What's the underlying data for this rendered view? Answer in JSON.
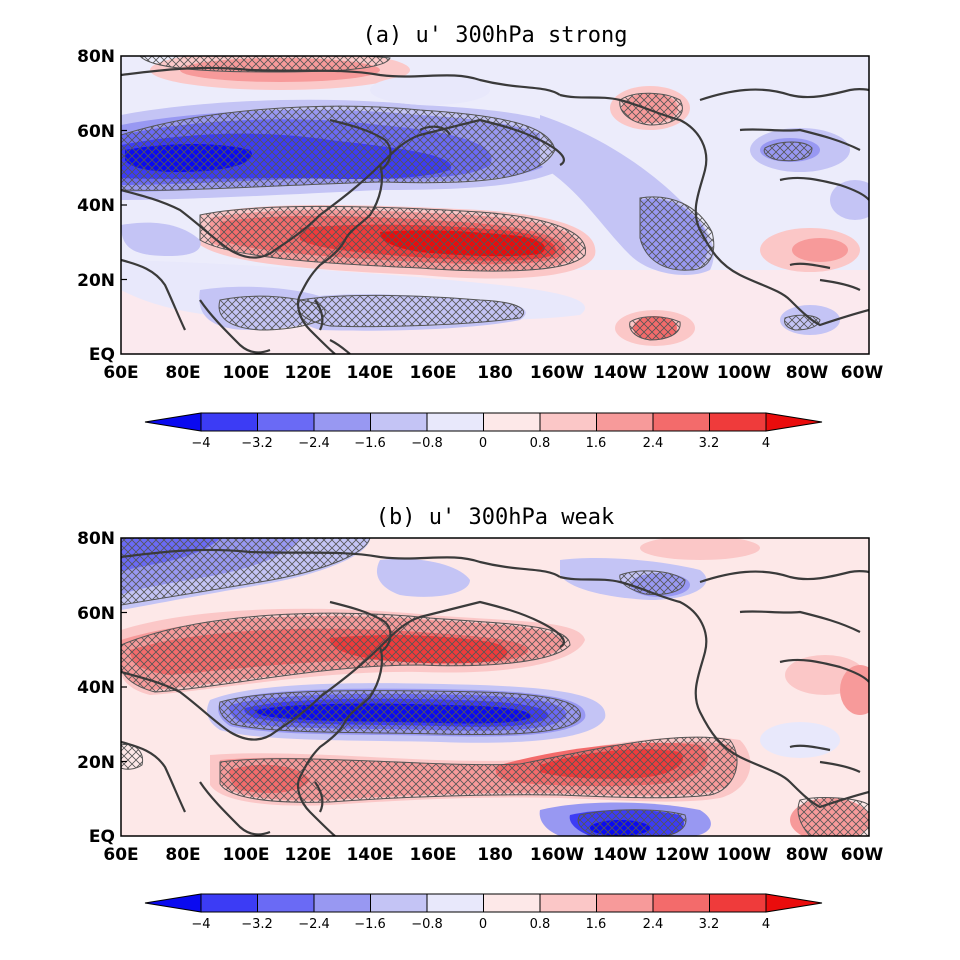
{
  "panels": [
    {
      "title": "(a) u' 300hPa strong",
      "lat_ticks": [
        "80N",
        "60N",
        "40N",
        "20N",
        "EQ"
      ],
      "lon_ticks": [
        "60E",
        "80E",
        "100E",
        "120E",
        "140E",
        "160E",
        "180",
        "160W",
        "140W",
        "120W",
        "100W",
        "80W",
        "60W"
      ],
      "colorbar_ticks": [
        "−4",
        "−3.2",
        "−2.4",
        "−1.6",
        "−0.8",
        "0",
        "0.8",
        "1.6",
        "2.4",
        "3.2",
        "4"
      ]
    },
    {
      "title": "(b) u' 300hPa weak",
      "lat_ticks": [
        "80N",
        "60N",
        "40N",
        "20N",
        "EQ"
      ],
      "lon_ticks": [
        "60E",
        "80E",
        "100E",
        "120E",
        "140E",
        "160E",
        "180",
        "160W",
        "140W",
        "120W",
        "100W",
        "80W",
        "60W"
      ],
      "colorbar_ticks": [
        "−4",
        "−3.2",
        "−2.4",
        "−1.6",
        "−0.8",
        "0",
        "0.8",
        "1.6",
        "2.4",
        "3.2",
        "4"
      ]
    }
  ],
  "colors": {
    "neg": [
      "#0a0af0",
      "#3c3cf5",
      "#6a6af5",
      "#9898f2",
      "#c4c4f5",
      "#e8e8fb"
    ],
    "pos": [
      "#fde8e8",
      "#fbc7c7",
      "#f79a9a",
      "#f36b6b",
      "#ef3b3b",
      "#ea0c0c"
    ],
    "coast": "#3a3a3a",
    "hatch": "#555555"
  }
}
